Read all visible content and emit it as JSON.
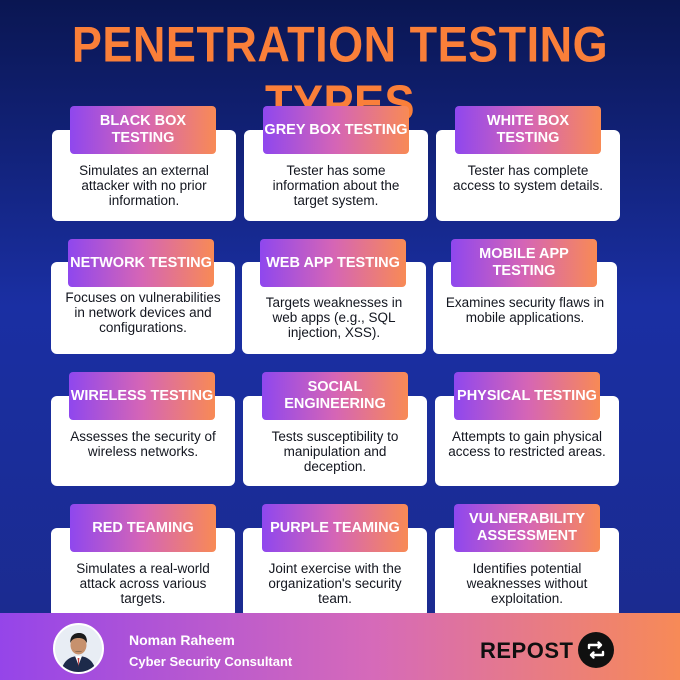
{
  "title": "PENETRATION TESTING TYPES",
  "cards": [
    {
      "label": "BLACK BOX TESTING",
      "desc": "Simulates an external attacker with no prior information."
    },
    {
      "label": "GREY BOX TESTING",
      "desc": "Tester has some information about the target system."
    },
    {
      "label": "WHITE BOX TESTING",
      "desc": "Tester has complete access to system details."
    },
    {
      "label": "NETWORK TESTING",
      "desc": "Focuses on vulnerabilities in network devices and configurations."
    },
    {
      "label": "WEB APP TESTING",
      "desc": "Targets weaknesses in web apps (e.g., SQL injection, XSS)."
    },
    {
      "label": "MOBILE APP TESTING",
      "desc": "Examines security flaws in mobile applications."
    },
    {
      "label": "WIRELESS TESTING",
      "desc": "Assesses the security of wireless networks."
    },
    {
      "label": "SOCIAL ENGINEERING",
      "desc": "Tests susceptibility to manipulation and deception."
    },
    {
      "label": "PHYSICAL TESTING",
      "desc": "Attempts to gain physical access to restricted areas."
    },
    {
      "label": "RED TEAMING",
      "desc": "Simulates a real-world attack across various targets."
    },
    {
      "label": "PURPLE TEAMING",
      "desc": "Joint exercise with the organization's security team."
    },
    {
      "label": "VULNERABILITY ASSESSMENT",
      "desc": "Identifies potential weaknesses without exploitation."
    }
  ],
  "footer": {
    "author_name": "Noman Raheem",
    "author_role": "Cyber Security Consultant",
    "repost_label": "REPOST",
    "avatar_icon": "person-avatar",
    "repost_icon": "repost-arrows-icon"
  },
  "colors": {
    "title": "#fa7f39",
    "background_top": "#0a1652",
    "background_bottom": "#1b2a8c",
    "label_gradient_start": "#8f47ee",
    "label_gradient_end": "#f88a55",
    "card": "#ffffff"
  }
}
